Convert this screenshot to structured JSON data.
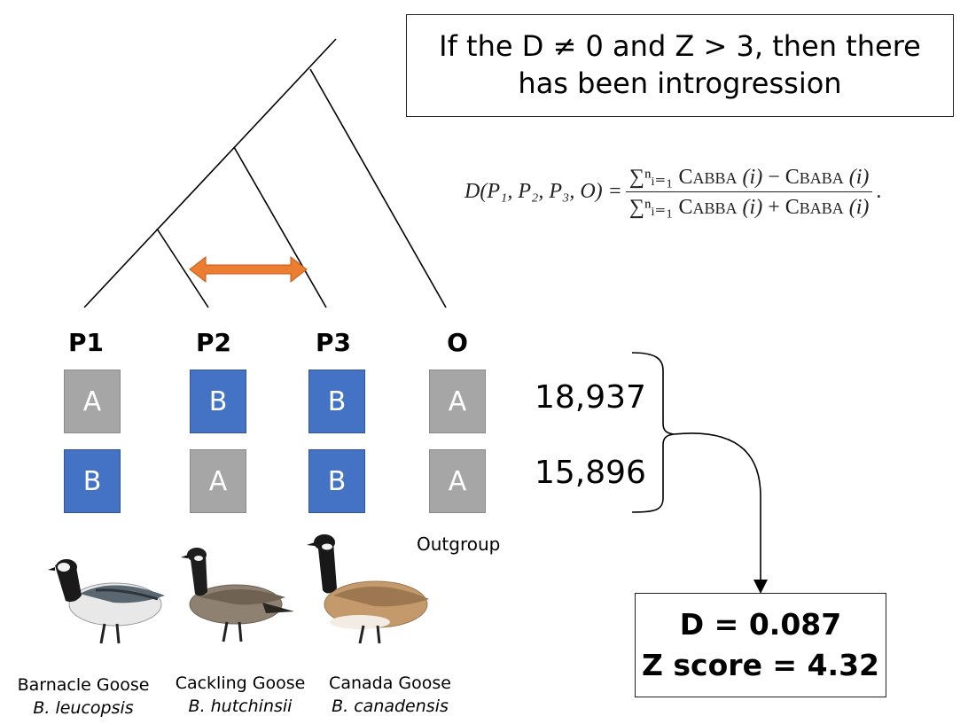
{
  "claim": {
    "line1": "If the D ≠ 0 and Z > 3, then there",
    "line2": "has been introgression"
  },
  "formula": {
    "lhs": "D(P₁, P₂, P₃, O) =",
    "numerator_sum": "∑ⁿᵢ₌₁",
    "c": "C",
    "abba": "ABBA",
    "baba": "BABA",
    "arg": "(i)",
    "minus": "−",
    "plus": "+",
    "end": "."
  },
  "taxa": [
    "P1",
    "P2",
    "P3",
    "O"
  ],
  "patterns": [
    {
      "cells": [
        "A",
        "B",
        "B",
        "A"
      ],
      "count": "18,937"
    },
    {
      "cells": [
        "B",
        "A",
        "B",
        "A"
      ],
      "count": "15,896"
    }
  ],
  "outgroup_label": "Outgroup",
  "species": [
    {
      "common": "Barnacle Goose",
      "scientific": "B. leucopsis"
    },
    {
      "common": "Cackling Goose",
      "scientific": "B. hutchinsii"
    },
    {
      "common": "Canada Goose",
      "scientific": "B. canadensis"
    }
  ],
  "result": {
    "d": "D = 0.087",
    "z": "Z score = 4.32"
  },
  "colors": {
    "allele_a": "#a6a6a6",
    "allele_b": "#4472c4",
    "gene_flow_arrow": "#ed7d31"
  }
}
